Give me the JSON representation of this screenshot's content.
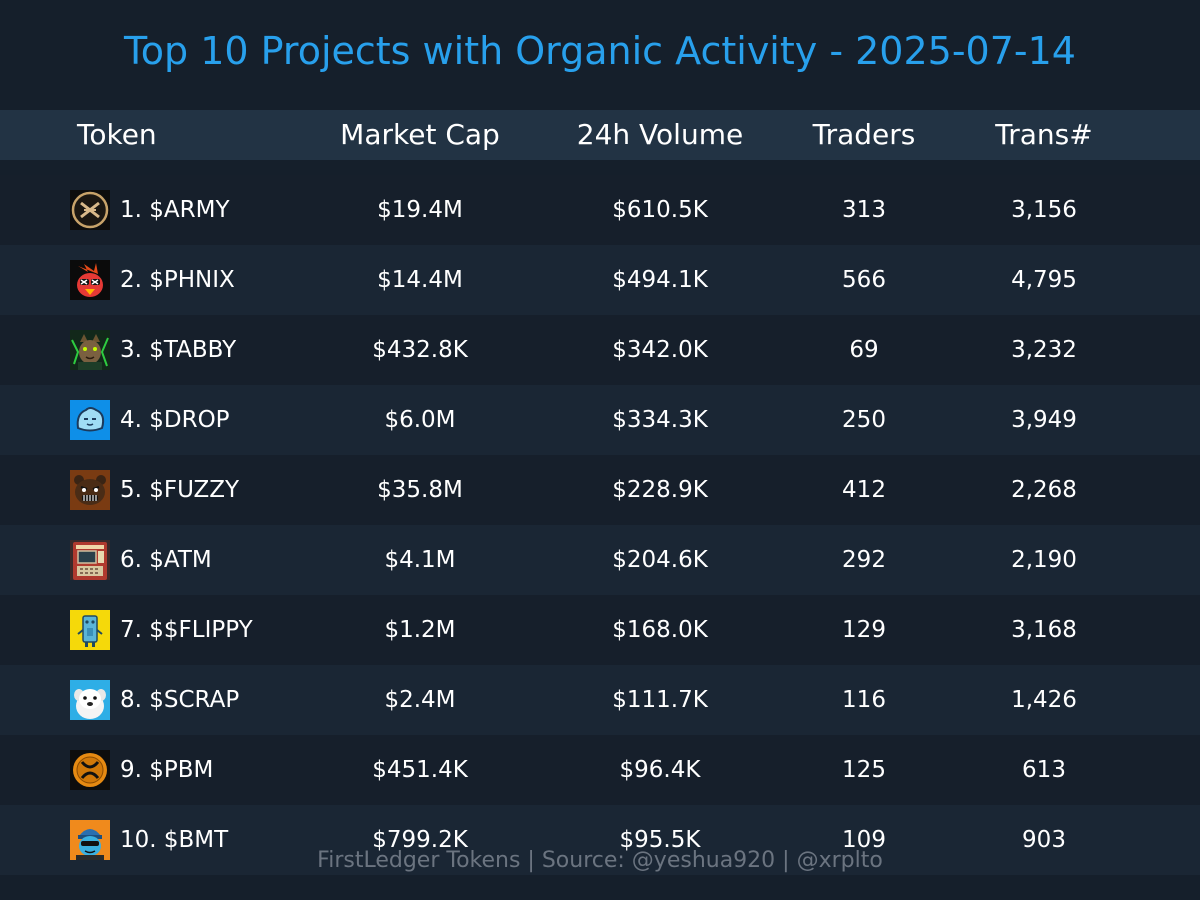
{
  "chart_data": {
    "type": "table",
    "title": "Top 10 Projects with Organic Activity - 2025-07-14",
    "columns": [
      "Token",
      "Market Cap",
      "24h Volume",
      "Traders",
      "Trans#"
    ],
    "rows": [
      {
        "token": "1. $ARMY",
        "market_cap": "$19.4M",
        "volume": "$610.5K",
        "traders": "313",
        "trans": "3,156",
        "icon": "army-x-logo-icon"
      },
      {
        "token": "2. $PHNIX",
        "market_cap": "$14.4M",
        "volume": "$494.1K",
        "traders": "566",
        "trans": "4,795",
        "icon": "phoenix-bird-icon"
      },
      {
        "token": "3. $TABBY",
        "market_cap": "$432.8K",
        "volume": "$342.0K",
        "traders": "69",
        "trans": "3,232",
        "icon": "tabby-cat-icon"
      },
      {
        "token": "4. $DROP",
        "market_cap": "$6.0M",
        "volume": "$334.3K",
        "traders": "250",
        "trans": "3,949",
        "icon": "drop-blob-icon"
      },
      {
        "token": "5. $FUZZY",
        "market_cap": "$35.8M",
        "volume": "$228.9K",
        "traders": "412",
        "trans": "2,268",
        "icon": "fuzzy-bear-icon"
      },
      {
        "token": "6. $ATM",
        "market_cap": "$4.1M",
        "volume": "$204.6K",
        "traders": "292",
        "trans": "2,190",
        "icon": "atm-machine-icon"
      },
      {
        "token": "7. $$FLIPPY",
        "market_cap": "$1.2M",
        "volume": "$168.0K",
        "traders": "129",
        "trans": "3,168",
        "icon": "flippy-robot-icon"
      },
      {
        "token": "8. $SCRAP",
        "market_cap": "$2.4M",
        "volume": "$111.7K",
        "traders": "116",
        "trans": "1,426",
        "icon": "scrap-dog-icon"
      },
      {
        "token": "9. $PBM",
        "market_cap": "$451.4K",
        "volume": "$96.4K",
        "traders": "125",
        "trans": "613",
        "icon": "pbm-xrp-coin-icon"
      },
      {
        "token": "10. $BMT",
        "market_cap": "$799.2K",
        "volume": "$95.5K",
        "traders": "109",
        "trans": "903",
        "icon": "bmt-character-icon"
      }
    ],
    "footer": "FirstLedger Tokens | Source: @yeshua920 | @xrplto",
    "colors": {
      "background": "#151f2b",
      "header_bg": "#223344",
      "row_alt": "#1a2634",
      "title": "#28a0ec",
      "footer": "#6b7480"
    }
  }
}
